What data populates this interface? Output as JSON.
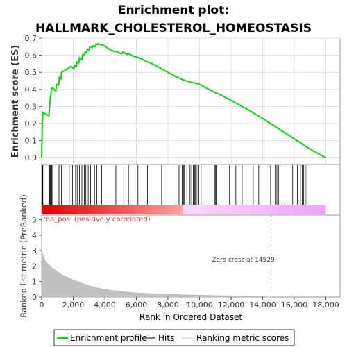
{
  "chart_data": {
    "type": "line",
    "title": "Enrichment plot:",
    "subtitle": "HALLMARK_CHOLESTEROL_HOMEOSTASIS",
    "xlabel": "Rank in Ordered Dataset",
    "xlim": [
      0,
      18900
    ],
    "x_ticks": [
      "0",
      "2,000",
      "4,000",
      "6,000",
      "8,000",
      "10,000",
      "12,000",
      "14,000",
      "16,000",
      "18,000"
    ],
    "x_tick_values": [
      0,
      2000,
      4000,
      6000,
      8000,
      10000,
      12000,
      14000,
      16000,
      18000
    ],
    "top_panel": {
      "ylabel": "Enrichment score (ES)",
      "ylim": [
        -0.04,
        0.7
      ],
      "y_ticks": [
        "0.0",
        "0.1",
        "0.2",
        "0.3",
        "0.4",
        "0.5",
        "0.6",
        "0.7"
      ],
      "y_tick_values": [
        0,
        0.1,
        0.2,
        0.3,
        0.4,
        0.5,
        0.6,
        0.7
      ],
      "grid": true,
      "series": [
        {
          "name": "Enrichment profile",
          "color": "#00dd00",
          "x": [
            0,
            40,
            60,
            80,
            460,
            520,
            560,
            580,
            620,
            680,
            900,
            940,
            1080,
            1120,
            1220,
            1260,
            1800,
            1850,
            2050,
            2100,
            2200,
            2240,
            2350,
            2400,
            2550,
            2600,
            2700,
            2750,
            2850,
            2900,
            3000,
            3050,
            3200,
            3250,
            3400,
            3450,
            3560,
            3600,
            3800,
            4000,
            4200,
            4500,
            4800,
            5000,
            5100,
            5150,
            5400,
            5450,
            5600,
            5800,
            6000,
            6300,
            6600,
            7000,
            7500,
            8000,
            8500,
            9000,
            9500,
            9700,
            10000,
            10500,
            11000,
            11300,
            11500,
            12000,
            13000,
            14000,
            15000,
            16000,
            17000,
            18000
          ],
          "y": [
            0.0,
            0.2,
            0.24,
            0.265,
            0.245,
            0.32,
            0.36,
            0.365,
            0.405,
            0.41,
            0.39,
            0.43,
            0.425,
            0.47,
            0.46,
            0.5,
            0.53,
            0.535,
            0.52,
            0.54,
            0.535,
            0.56,
            0.555,
            0.585,
            0.575,
            0.605,
            0.6,
            0.62,
            0.615,
            0.635,
            0.63,
            0.65,
            0.645,
            0.655,
            0.65,
            0.665,
            0.662,
            0.667,
            0.66,
            0.655,
            0.64,
            0.625,
            0.62,
            0.61,
            0.61,
            0.62,
            0.605,
            0.61,
            0.605,
            0.595,
            0.59,
            0.58,
            0.565,
            0.55,
            0.525,
            0.5,
            0.475,
            0.455,
            0.44,
            0.438,
            0.43,
            0.405,
            0.38,
            0.37,
            0.36,
            0.335,
            0.285,
            0.23,
            0.17,
            0.11,
            0.05,
            0.0
          ]
        }
      ]
    },
    "hits_panel": {
      "legend_name": "Hits",
      "hit_positions": [
        20,
        40,
        60,
        80,
        460,
        500,
        540,
        580,
        620,
        660,
        900,
        1100,
        1250,
        1750,
        1950,
        2150,
        2250,
        2400,
        2550,
        2700,
        2800,
        2950,
        3100,
        3350,
        3500,
        3800,
        4700,
        5200,
        5500,
        5600,
        6100,
        6700,
        7600,
        8500,
        8700,
        8900,
        9000,
        9050,
        9200,
        9400,
        9500,
        9600,
        9650,
        9700,
        9750,
        9800,
        9900,
        9950,
        10100,
        10950,
        11000,
        11050,
        11100,
        11900,
        12300,
        12700,
        12950,
        13400,
        13750,
        14500,
        14800,
        14900,
        15000,
        15100,
        15400,
        15900,
        16200,
        16400,
        16500,
        16550,
        16600,
        16700,
        16800
      ],
      "gradient_split": 8950,
      "gradient_end": 18000,
      "colors": [
        "#dd0000",
        "#ffa0a0",
        "#ffd8ff",
        "#f0a0ff"
      ],
      "label": "'na_pos' (positively correlated)"
    },
    "bottom_panel": {
      "ylabel": "Ranked list metric (PreRanked)",
      "ylim": [
        0,
        5.3
      ],
      "y_ticks": [
        "0",
        "1",
        "2",
        "3",
        "4",
        "5"
      ],
      "y_tick_values": [
        0,
        1,
        2,
        3,
        4,
        5
      ],
      "series": [
        {
          "name": "Ranking metric scores",
          "color": "#c0c0c0",
          "x": [
            0,
            30,
            80,
            150,
            250,
            400,
            600,
            800,
            1000,
            1300,
            1600,
            2000,
            2400,
            2800,
            3200,
            3600,
            4000,
            4500,
            5000,
            5500,
            6000,
            7000,
            8000,
            9000,
            10000,
            11000,
            12000,
            13000,
            14000,
            14529
          ],
          "y": [
            3.3,
            3.0,
            2.75,
            2.55,
            2.35,
            2.15,
            1.95,
            1.8,
            1.65,
            1.45,
            1.3,
            1.1,
            0.95,
            0.8,
            0.68,
            0.58,
            0.5,
            0.42,
            0.36,
            0.31,
            0.27,
            0.22,
            0.18,
            0.15,
            0.12,
            0.1,
            0.08,
            0.06,
            0.03,
            0.0
          ]
        }
      ],
      "zero_cross": 14529,
      "zero_cross_label": "Zero cross at 14529"
    },
    "legend": {
      "placement": "bottom",
      "items": [
        {
          "label": "Enrichment profile",
          "color": "#00dd00"
        },
        {
          "label": "Hits",
          "color": "#000000"
        },
        {
          "label": "Ranking metric scores",
          "color": "#c0c0c0"
        }
      ]
    }
  }
}
